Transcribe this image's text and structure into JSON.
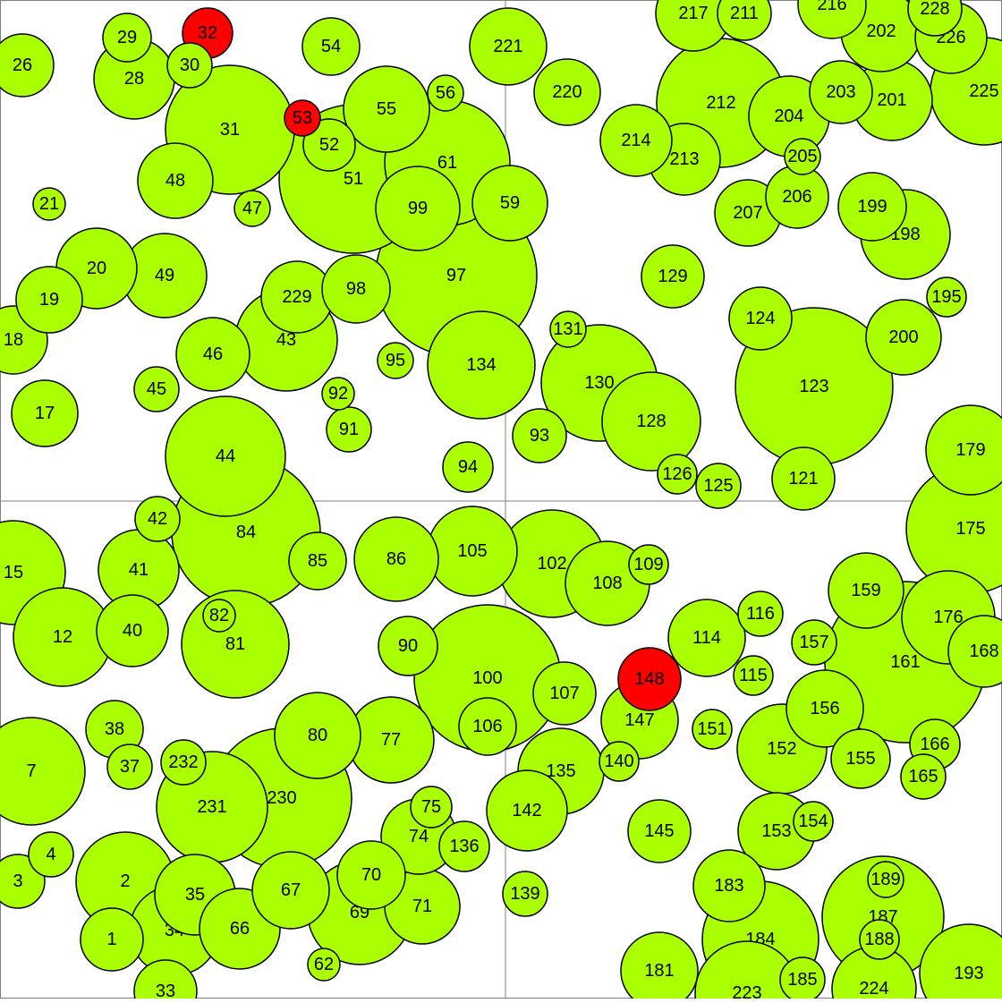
{
  "colors": {
    "fill": "#aaff00",
    "highlight": "#ff0000",
    "stroke": "#000000",
    "background": "#ffffff",
    "divider": "#808080"
  },
  "bubbles": [
    {
      "label": "1",
      "c": "n"
    },
    {
      "label": "2",
      "c": "n"
    },
    {
      "label": "3",
      "c": "n"
    },
    {
      "label": "4",
      "c": "n"
    },
    {
      "label": "7",
      "c": "n"
    },
    {
      "label": "12",
      "c": "n"
    },
    {
      "label": "15",
      "c": "n"
    },
    {
      "label": "17",
      "c": "n"
    },
    {
      "label": "18",
      "c": "n"
    },
    {
      "label": "19",
      "c": "n"
    },
    {
      "label": "20",
      "c": "n"
    },
    {
      "label": "21",
      "c": "n"
    },
    {
      "label": "26",
      "c": "n"
    },
    {
      "label": "28",
      "c": "n"
    },
    {
      "label": "29",
      "c": "n"
    },
    {
      "label": "30",
      "c": "n"
    },
    {
      "label": "31",
      "c": "n"
    },
    {
      "label": "32",
      "c": "r"
    },
    {
      "label": "33",
      "c": "n"
    },
    {
      "label": "34",
      "c": "n"
    },
    {
      "label": "35",
      "c": "n"
    },
    {
      "label": "37",
      "c": "n"
    },
    {
      "label": "38",
      "c": "n"
    },
    {
      "label": "40",
      "c": "n"
    },
    {
      "label": "41",
      "c": "n"
    },
    {
      "label": "42",
      "c": "n"
    },
    {
      "label": "43",
      "c": "n"
    },
    {
      "label": "44",
      "c": "n"
    },
    {
      "label": "45",
      "c": "n"
    },
    {
      "label": "46",
      "c": "n"
    },
    {
      "label": "47",
      "c": "n"
    },
    {
      "label": "48",
      "c": "n"
    },
    {
      "label": "49",
      "c": "n"
    },
    {
      "label": "51",
      "c": "n"
    },
    {
      "label": "52",
      "c": "n"
    },
    {
      "label": "53",
      "c": "r"
    },
    {
      "label": "54",
      "c": "n"
    },
    {
      "label": "55",
      "c": "n"
    },
    {
      "label": "56",
      "c": "n"
    },
    {
      "label": "59",
      "c": "n"
    },
    {
      "label": "61",
      "c": "n"
    },
    {
      "label": "62",
      "c": "n"
    },
    {
      "label": "66",
      "c": "n"
    },
    {
      "label": "67",
      "c": "n"
    },
    {
      "label": "69",
      "c": "n"
    },
    {
      "label": "70",
      "c": "n"
    },
    {
      "label": "71",
      "c": "n"
    },
    {
      "label": "74",
      "c": "n"
    },
    {
      "label": "75",
      "c": "n"
    },
    {
      "label": "77",
      "c": "n"
    },
    {
      "label": "80",
      "c": "n"
    },
    {
      "label": "81",
      "c": "n"
    },
    {
      "label": "82",
      "c": "n"
    },
    {
      "label": "84",
      "c": "n"
    },
    {
      "label": "85",
      "c": "n"
    },
    {
      "label": "86",
      "c": "n"
    },
    {
      "label": "90",
      "c": "n"
    },
    {
      "label": "91",
      "c": "n"
    },
    {
      "label": "92",
      "c": "n"
    },
    {
      "label": "93",
      "c": "n"
    },
    {
      "label": "94",
      "c": "n"
    },
    {
      "label": "95",
      "c": "n"
    },
    {
      "label": "97",
      "c": "n"
    },
    {
      "label": "98",
      "c": "n"
    },
    {
      "label": "99",
      "c": "n"
    },
    {
      "label": "100",
      "c": "n"
    },
    {
      "label": "102",
      "c": "n"
    },
    {
      "label": "105",
      "c": "n"
    },
    {
      "label": "106",
      "c": "n"
    },
    {
      "label": "107",
      "c": "n"
    },
    {
      "label": "108",
      "c": "n"
    },
    {
      "label": "109",
      "c": "n"
    },
    {
      "label": "114",
      "c": "n"
    },
    {
      "label": "115",
      "c": "n"
    },
    {
      "label": "116",
      "c": "n"
    },
    {
      "label": "121",
      "c": "n"
    },
    {
      "label": "123",
      "c": "n"
    },
    {
      "label": "124",
      "c": "n"
    },
    {
      "label": "125",
      "c": "n"
    },
    {
      "label": "126",
      "c": "n"
    },
    {
      "label": "128",
      "c": "n"
    },
    {
      "label": "129",
      "c": "n"
    },
    {
      "label": "130",
      "c": "n"
    },
    {
      "label": "131",
      "c": "n"
    },
    {
      "label": "134",
      "c": "n"
    },
    {
      "label": "135",
      "c": "n"
    },
    {
      "label": "136",
      "c": "n"
    },
    {
      "label": "139",
      "c": "n"
    },
    {
      "label": "140",
      "c": "n"
    },
    {
      "label": "142",
      "c": "n"
    },
    {
      "label": "145",
      "c": "n"
    },
    {
      "label": "147",
      "c": "n"
    },
    {
      "label": "148",
      "c": "r"
    },
    {
      "label": "151",
      "c": "n"
    },
    {
      "label": "152",
      "c": "n"
    },
    {
      "label": "153",
      "c": "n"
    },
    {
      "label": "154",
      "c": "n"
    },
    {
      "label": "155",
      "c": "n"
    },
    {
      "label": "156",
      "c": "n"
    },
    {
      "label": "157",
      "c": "n"
    },
    {
      "label": "159",
      "c": "n"
    },
    {
      "label": "161",
      "c": "n"
    },
    {
      "label": "165",
      "c": "n"
    },
    {
      "label": "166",
      "c": "n"
    },
    {
      "label": "168",
      "c": "n"
    },
    {
      "label": "175",
      "c": "n"
    },
    {
      "label": "176",
      "c": "n"
    },
    {
      "label": "179",
      "c": "n"
    },
    {
      "label": "181",
      "c": "n"
    },
    {
      "label": "183",
      "c": "n"
    },
    {
      "label": "184",
      "c": "n"
    },
    {
      "label": "185",
      "c": "n"
    },
    {
      "label": "187",
      "c": "n"
    },
    {
      "label": "188",
      "c": "n"
    },
    {
      "label": "189",
      "c": "n"
    },
    {
      "label": "193",
      "c": "n"
    },
    {
      "label": "195",
      "c": "n"
    },
    {
      "label": "198",
      "c": "n"
    },
    {
      "label": "199",
      "c": "n"
    },
    {
      "label": "200",
      "c": "n"
    },
    {
      "label": "201",
      "c": "n"
    },
    {
      "label": "202",
      "c": "n"
    },
    {
      "label": "203",
      "c": "n"
    },
    {
      "label": "204",
      "c": "n"
    },
    {
      "label": "205",
      "c": "n"
    },
    {
      "label": "206",
      "c": "n"
    },
    {
      "label": "207",
      "c": "n"
    },
    {
      "label": "211",
      "c": "n"
    },
    {
      "label": "212",
      "c": "n"
    },
    {
      "label": "213",
      "c": "n"
    },
    {
      "label": "214",
      "c": "n"
    },
    {
      "label": "216",
      "c": "n"
    },
    {
      "label": "217",
      "c": "n"
    },
    {
      "label": "220",
      "c": "n"
    },
    {
      "label": "221",
      "c": "n"
    },
    {
      "label": "223",
      "c": "n"
    },
    {
      "label": "224",
      "c": "n"
    },
    {
      "label": "225",
      "c": "n"
    },
    {
      "label": "226",
      "c": "n"
    },
    {
      "label": "228",
      "c": "n"
    },
    {
      "label": "229",
      "c": "n"
    },
    {
      "label": "230",
      "c": "n"
    },
    {
      "label": "231",
      "c": "n"
    },
    {
      "label": "232",
      "c": "n"
    }
  ]
}
